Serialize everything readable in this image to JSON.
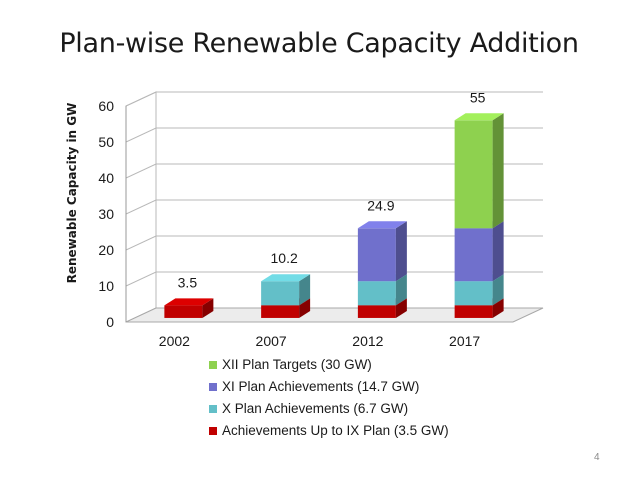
{
  "slide": {
    "title": "Plan-wise Renewable Capacity Addition",
    "page_number": "4"
  },
  "chart_data": {
    "type": "bar",
    "stacked": true,
    "three_d": true,
    "title": "",
    "xlabel": "",
    "ylabel": "Renewable Capacity in GW",
    "ylim": [
      0,
      60
    ],
    "yticks": [
      "0",
      "10",
      "20",
      "30",
      "40",
      "50",
      "60"
    ],
    "categories": [
      "2002",
      "2007",
      "2012",
      "2017"
    ],
    "series": [
      {
        "name": "Achievements Up to IX Plan (3.5 GW)",
        "values": [
          3.5,
          3.5,
          3.5,
          3.5
        ],
        "color": "#c00000"
      },
      {
        "name": "X Plan Achievements (6.7 GW)",
        "values": [
          0,
          6.7,
          6.7,
          6.7
        ],
        "color": "#63bfc8"
      },
      {
        "name": "XI Plan Achievements (14.7 GW)",
        "values": [
          0,
          0,
          14.7,
          14.7
        ],
        "color": "#7070cc"
      },
      {
        "name": "XII Plan Targets (30 GW)",
        "values": [
          0,
          0,
          0,
          30
        ],
        "color": "#8ed14f"
      }
    ],
    "totals": [
      "3.5",
      "10.2",
      "24.9",
      "55"
    ],
    "legend_position": "bottom",
    "grid": true
  }
}
